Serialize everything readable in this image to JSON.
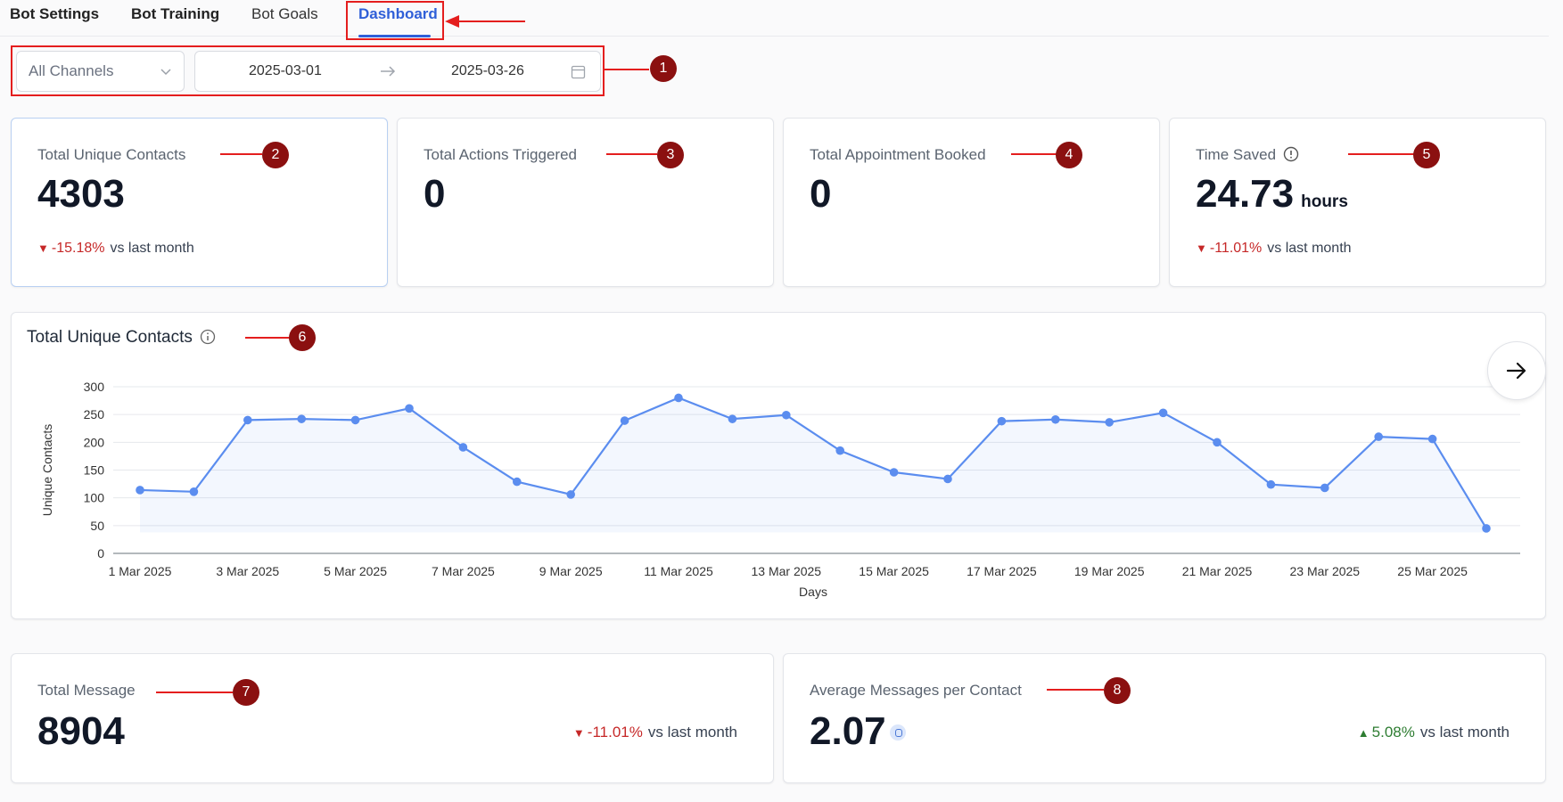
{
  "tabs": [
    {
      "label": "Bot Settings"
    },
    {
      "label": "Bot Training"
    },
    {
      "label": "Bot Goals"
    },
    {
      "label": "Dashboard",
      "active": true
    }
  ],
  "filters": {
    "channel": "All Channels",
    "start_date": "2025-03-01",
    "end_date": "2025-03-26"
  },
  "stats": [
    {
      "label": "Total Unique Contacts",
      "value": "4303",
      "delta": "-15.18%",
      "direction": "down",
      "vs": "vs last month"
    },
    {
      "label": "Total Actions Triggered",
      "value": "0"
    },
    {
      "label": "Total Appointment Booked",
      "value": "0"
    },
    {
      "label": "Time Saved",
      "value": "24.73",
      "unit": "hours",
      "delta": "-11.01%",
      "direction": "down",
      "vs": "vs last month"
    }
  ],
  "chart": {
    "title": "Total Unique Contacts"
  },
  "chart_data": {
    "type": "line",
    "xlabel": "Days",
    "ylabel": "Unique Contacts",
    "ylim": [
      0,
      300
    ],
    "yticks": [
      0,
      50,
      100,
      150,
      200,
      250,
      300
    ],
    "x": [
      "1 Mar 2025",
      "2 Mar 2025",
      "3 Mar 2025",
      "4 Mar 2025",
      "5 Mar 2025",
      "6 Mar 2025",
      "7 Mar 2025",
      "8 Mar 2025",
      "9 Mar 2025",
      "10 Mar 2025",
      "11 Mar 2025",
      "12 Mar 2025",
      "13 Mar 2025",
      "14 Mar 2025",
      "15 Mar 2025",
      "16 Mar 2025",
      "17 Mar 2025",
      "18 Mar 2025",
      "19 Mar 2025",
      "20 Mar 2025",
      "21 Mar 2025",
      "22 Mar 2025",
      "23 Mar 2025",
      "24 Mar 2025",
      "25 Mar 2025",
      "26 Mar 2025"
    ],
    "xticklabels": [
      "1 Mar 2025",
      "3 Mar 2025",
      "5 Mar 2025",
      "7 Mar 2025",
      "9 Mar 2025",
      "11 Mar 2025",
      "13 Mar 2025",
      "15 Mar 2025",
      "17 Mar 2025",
      "19 Mar 2025",
      "21 Mar 2025",
      "23 Mar 2025",
      "25 Mar 2025"
    ],
    "values": [
      114,
      111,
      240,
      242,
      240,
      261,
      191,
      129,
      106,
      239,
      280,
      242,
      249,
      185,
      146,
      134,
      238,
      241,
      236,
      253,
      200,
      124,
      118,
      210,
      206,
      45
    ],
    "grid": true,
    "color": "#5b8def"
  },
  "bottom": [
    {
      "label": "Total Message",
      "value": "8904",
      "delta": "-11.01%",
      "direction": "down",
      "vs": "vs last month"
    },
    {
      "label": "Average Messages per Contact",
      "value": "2.07",
      "delta": "5.08%",
      "direction": "up",
      "vs": "vs last month"
    }
  ],
  "annotations": [
    "1",
    "2",
    "3",
    "4",
    "5",
    "6",
    "7",
    "8"
  ],
  "colors": {
    "accent": "#2f5fd8",
    "negative": "#c62828",
    "positive": "#2e7d32",
    "annotation": "#e41e1e",
    "badge": "#8b1010"
  }
}
